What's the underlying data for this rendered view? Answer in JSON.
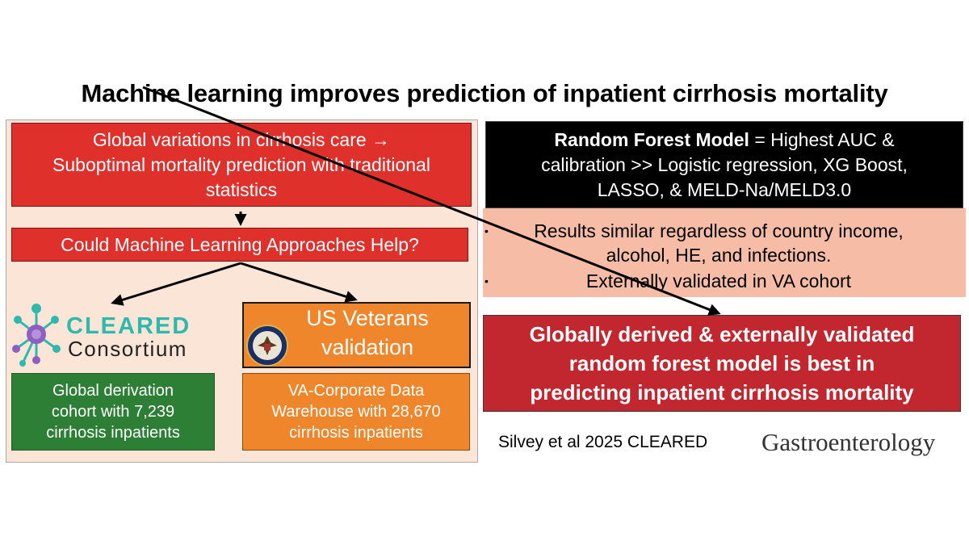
{
  "title": "Machine learning improves prediction of inpatient cirrhosis mortality",
  "left": {
    "global_lines": [
      "Global variations in cirrhosis care →",
      "Suboptimal mortality prediction with traditional",
      "statistics"
    ],
    "question": "Could Machine Learning Approaches Help?",
    "cleared_logo": {
      "word1": "CLEARED",
      "word2": "Consortium"
    },
    "derivation_lines": [
      "Global derivation",
      "cohort with 7,239",
      "cirrhosis inpatients"
    ],
    "veterans_lines": [
      "US Veterans",
      "validation"
    ],
    "va_lines": [
      "VA-Corporate Data",
      "Warehouse with 28,670",
      "cirrhosis inpatients"
    ]
  },
  "right": {
    "rf_bold": "Random Forest Model",
    "rf_line1_rest": " = Highest AUC &",
    "rf_line2": "calibration >> Logistic regression, XG Boost,",
    "rf_line3": "LASSO, & MELD-Na/MELD3.0",
    "bullets": [
      {
        "lines": [
          "Results similar regardless of country income,",
          "alcohol, HE, and infections."
        ]
      },
      {
        "lines": [
          "Externally validated in VA cohort"
        ]
      }
    ],
    "conclusion_lines": [
      "Globally derived & externally validated",
      "random forest model is best in",
      "predicting inpatient cirrhosis mortality"
    ]
  },
  "citation": "Silvey et al 2025 CLEARED",
  "journal": "Gastroenterology",
  "colors": {
    "panel_bg": "#fbe5d6",
    "red_box": "#e0302c",
    "green_box": "#2c7f35",
    "orange_box": "#f0862b",
    "salmon_panel": "#f7bca5",
    "conclusion_red": "#c2272f",
    "logo_teal": "#2fb8ae",
    "logo_purple": "#8e5fbf"
  },
  "icons": [
    "cleared-network-icon",
    "va-seal-icon",
    "arrow-down-icon",
    "diagonal-arrow-icon"
  ]
}
